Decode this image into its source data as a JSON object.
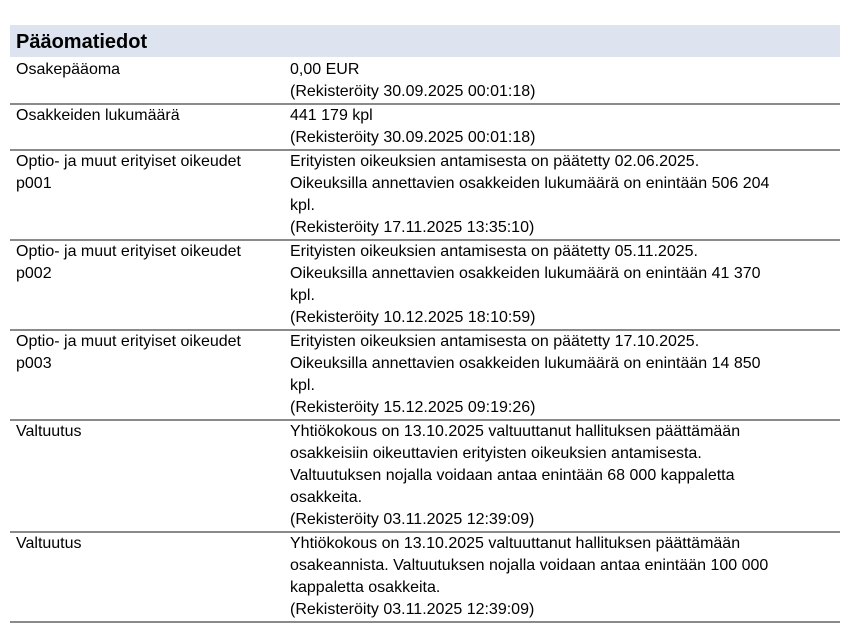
{
  "section": {
    "title": "Pääomatiedot",
    "rows": [
      {
        "label": [
          "Osakepääoma"
        ],
        "value": [
          "0,00 EUR",
          "(Rekisteröity 30.09.2025 00:01:18)"
        ]
      },
      {
        "label": [
          "Osakkeiden lukumäärä"
        ],
        "value": [
          "441 179 kpl",
          "(Rekisteröity 30.09.2025 00:01:18)"
        ]
      },
      {
        "label": [
          "Optio- ja muut erityiset oikeudet",
          "p001"
        ],
        "value": [
          "Erityisten oikeuksien antamisesta on päätetty 02.06.2025.",
          "Oikeuksilla annettavien osakkeiden lukumäärä on enintään 506 204",
          "kpl.",
          "(Rekisteröity 17.11.2025 13:35:10)"
        ]
      },
      {
        "label": [
          "Optio- ja muut erityiset oikeudet",
          "p002"
        ],
        "value": [
          "Erityisten oikeuksien antamisesta on päätetty 05.11.2025.",
          "Oikeuksilla annettavien osakkeiden lukumäärä on enintään 41 370",
          "kpl.",
          "(Rekisteröity 10.12.2025 18:10:59)"
        ]
      },
      {
        "label": [
          "Optio- ja muut erityiset oikeudet",
          "p003"
        ],
        "value": [
          "Erityisten oikeuksien antamisesta on päätetty 17.10.2025.",
          "Oikeuksilla annettavien osakkeiden lukumäärä on enintään 14 850",
          "kpl.",
          "(Rekisteröity 15.12.2025 09:19:26)"
        ]
      },
      {
        "label": [
          "Valtuutus"
        ],
        "value": [
          "Yhtiökokous on 13.10.2025 valtuuttanut hallituksen päättämään",
          "osakkeisiin oikeuttavien erityisten oikeuksien antamisesta.",
          "Valtuutuksen nojalla voidaan antaa enintään 68 000 kappaletta",
          "osakkeita.",
          "(Rekisteröity 03.11.2025 12:39:09)"
        ]
      },
      {
        "label": [
          "Valtuutus"
        ],
        "value": [
          "Yhtiökokous on 13.10.2025 valtuuttanut hallituksen päättämään",
          "osakeannista. Valtuutuksen nojalla voidaan antaa enintään 100 000",
          "kappaletta osakkeita.",
          "(Rekisteröity 03.11.2025 12:39:09)"
        ]
      }
    ]
  },
  "colors": {
    "header_bg": "#dde4f0",
    "separator": "#8a8a8a"
  }
}
